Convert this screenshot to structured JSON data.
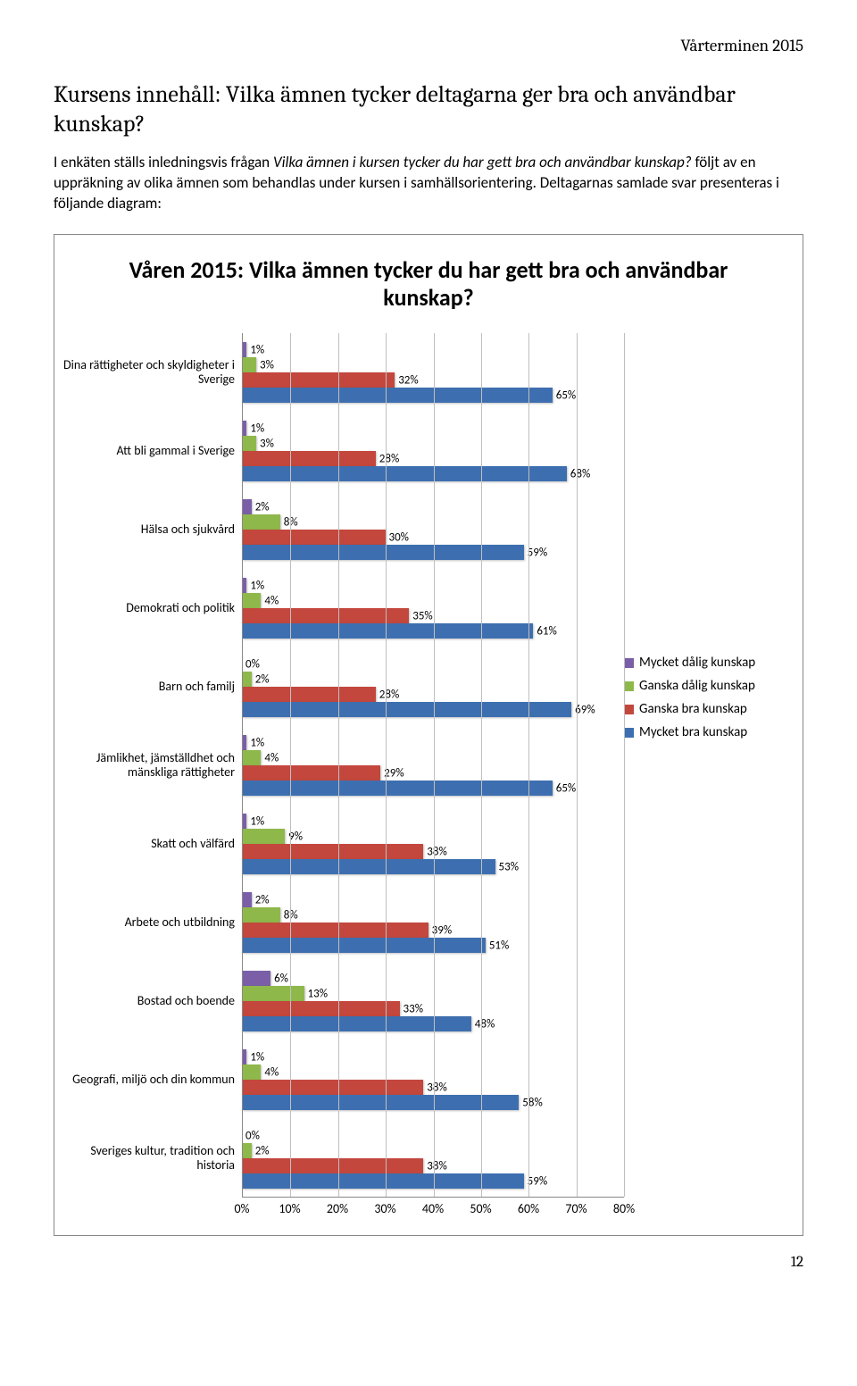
{
  "header": {
    "term": "Vårterminen 2015"
  },
  "section": {
    "title": "Kursens innehåll: Vilka ämnen tycker deltagarna ger bra och användbar kunskap?",
    "intro_prefix": "I enkäten ställs inledningsvis frågan ",
    "intro_em": "Vilka ämnen i kursen tycker du har gett bra och användbar kunskap?",
    "intro_suffix": " följt av en uppräkning av olika ämnen som behandlas under kursen i samhällsorientering. Deltagarnas samlade svar presenteras i följande diagram:"
  },
  "chart": {
    "title": "Våren 2015: Vilka ämnen tycker du har gett bra och användbar kunskap?",
    "x_max": 80,
    "x_step": 10,
    "x_ticks": [
      "0%",
      "10%",
      "20%",
      "30%",
      "40%",
      "50%",
      "60%",
      "70%",
      "80%"
    ],
    "grid_color": "#bfbfbf",
    "legend": [
      {
        "label": "Mycket dålig kunskap",
        "color": "#7a5fa8"
      },
      {
        "label": "Ganska dålig kunskap",
        "color": "#8fb84b"
      },
      {
        "label": "Ganska bra kunskap",
        "color": "#c3473d"
      },
      {
        "label": "Mycket bra kunskap",
        "color": "#3d6fb0"
      }
    ],
    "series_colors": [
      "#7a5fa8",
      "#8fb84b",
      "#c3473d",
      "#3d6fb0"
    ],
    "categories": [
      {
        "label": "Dina rättigheter och skyldigheter i Sverige",
        "values": [
          1,
          3,
          32,
          65
        ]
      },
      {
        "label": "Att bli gammal i Sverige",
        "values": [
          1,
          3,
          28,
          68
        ]
      },
      {
        "label": "Hälsa och sjukvård",
        "values": [
          2,
          8,
          30,
          59
        ]
      },
      {
        "label": "Demokrati och politik",
        "values": [
          1,
          4,
          35,
          61
        ]
      },
      {
        "label": "Barn och familj",
        "values": [
          0,
          2,
          28,
          69
        ]
      },
      {
        "label": "Jämlikhet, jämställdhet och mänskliga rättigheter",
        "values": [
          1,
          4,
          29,
          65
        ]
      },
      {
        "label": "Skatt och välfärd",
        "values": [
          1,
          9,
          38,
          53
        ]
      },
      {
        "label": "Arbete och utbildning",
        "values": [
          2,
          8,
          39,
          51
        ]
      },
      {
        "label": "Bostad och boende",
        "values": [
          6,
          13,
          33,
          48
        ]
      },
      {
        "label": "Geografi, miljö och din kommun",
        "values": [
          1,
          4,
          38,
          58
        ]
      },
      {
        "label": "Sveriges kultur, tradition och historia",
        "values": [
          0,
          2,
          38,
          59
        ]
      }
    ]
  },
  "footer": {
    "page": "12"
  }
}
